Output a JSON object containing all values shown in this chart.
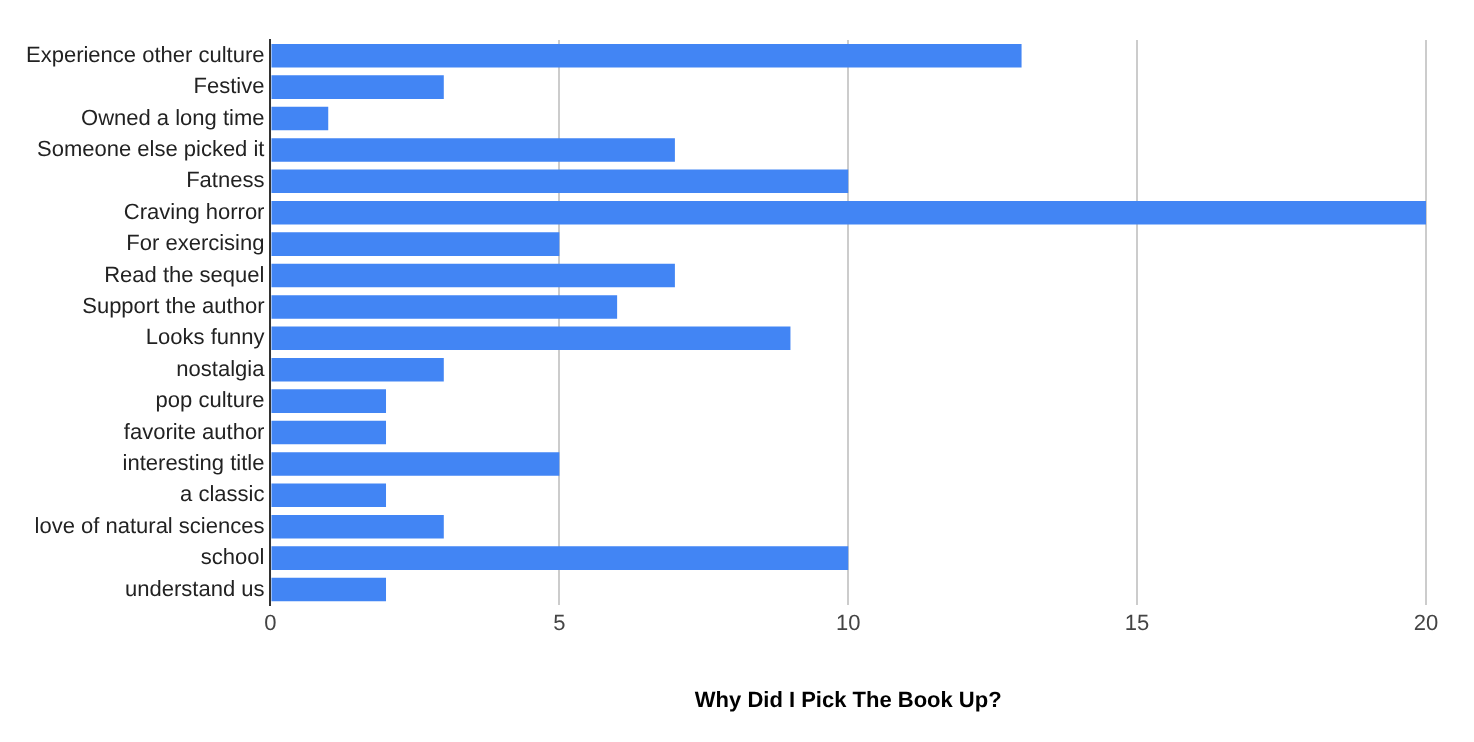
{
  "chart_data": {
    "type": "bar",
    "orientation": "horizontal",
    "xlabel": "Why Did I Pick The Book Up?",
    "categories": [
      "Experience other culture",
      "Festive",
      "Owned a long time",
      "Someone else picked it",
      "Fatness",
      "Craving horror",
      "For exercising",
      "Read the sequel",
      "Support the author",
      "Looks funny",
      "nostalgia",
      "pop culture",
      "favorite author",
      "interesting title",
      "a classic",
      "love of natural sciences",
      "school",
      "understand us"
    ],
    "values": [
      13,
      3,
      1,
      7,
      10,
      20,
      5,
      7,
      6,
      9,
      3,
      2,
      2,
      5,
      2,
      3,
      10,
      2
    ],
    "color": "#4285f4",
    "xlim": [
      0,
      20
    ],
    "xticks": [
      0,
      5,
      10,
      15,
      20
    ],
    "grid": "x",
    "legend": false
  }
}
